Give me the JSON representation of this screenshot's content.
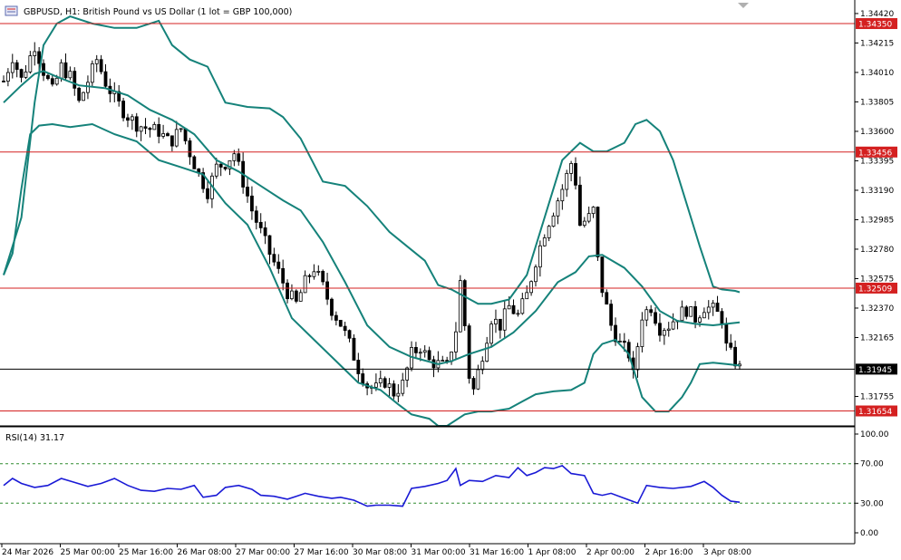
{
  "colors": {
    "background": "#ffffff",
    "candle": "#000000",
    "bollinger": "#15827a",
    "level_line": "#d42020",
    "level_tag": "#d42020",
    "current_tag": "#000000",
    "rsi_line": "#1a1ad6",
    "rsi_level": "#2e8b2e"
  },
  "icons": {
    "symbol": "chart-window-icon",
    "scroll": "scroll-marker-icon"
  },
  "chart_data": [
    {
      "type": "candlestick",
      "title": "GBPUSD, H1:  British Pound vs US Dollar (1 lot = GBP 100,000)",
      "ylim": [
        1.3155,
        1.3447
      ],
      "y_ticks": [
        "1.34420",
        "1.34215",
        "1.34010",
        "1.33805",
        "1.33600",
        "1.33395",
        "1.33190",
        "1.32985",
        "1.32780",
        "1.32575",
        "1.32370",
        "1.32165",
        "1.31755"
      ],
      "x_ticks": [
        "24 Mar 2026",
        "25 Mar 00:00",
        "25 Mar 16:00",
        "26 Mar 08:00",
        "27 Mar 00:00",
        "27 Mar 16:00",
        "30 Mar 08:00",
        "31 Mar 00:00",
        "31 Mar 16:00",
        "1 Apr 08:00",
        "2 Apr 00:00",
        "2 Apr 16:00",
        "3 Apr 08:00"
      ],
      "price_path": [
        [
          0,
          1.3395
        ],
        [
          4,
          1.3412
        ],
        [
          8,
          1.3396
        ],
        [
          14,
          1.342
        ],
        [
          18,
          1.3402
        ],
        [
          22,
          1.3388
        ],
        [
          26,
          1.3405
        ],
        [
          30,
          1.3398
        ],
        [
          34,
          1.338
        ],
        [
          38,
          1.3395
        ],
        [
          42,
          1.341
        ],
        [
          46,
          1.3394
        ],
        [
          50,
          1.3383
        ],
        [
          55,
          1.3372
        ],
        [
          60,
          1.3365
        ],
        [
          65,
          1.3362
        ],
        [
          70,
          1.336
        ],
        [
          75,
          1.3352
        ],
        [
          80,
          1.3362
        ],
        [
          84,
          1.3345
        ],
        [
          88,
          1.333
        ],
        [
          92,
          1.3318
        ],
        [
          96,
          1.3335
        ],
        [
          100,
          1.3338
        ],
        [
          104,
          1.3345
        ],
        [
          108,
          1.3325
        ],
        [
          112,
          1.3305
        ],
        [
          116,
          1.329
        ],
        [
          120,
          1.3275
        ],
        [
          124,
          1.3262
        ],
        [
          128,
          1.3248
        ],
        [
          132,
          1.324
        ],
        [
          136,
          1.3255
        ],
        [
          140,
          1.3265
        ],
        [
          144,
          1.3252
        ],
        [
          148,
          1.3236
        ],
        [
          152,
          1.3226
        ],
        [
          156,
          1.3212
        ],
        [
          160,
          1.3195
        ],
        [
          164,
          1.3183
        ],
        [
          168,
          1.3181
        ],
        [
          172,
          1.3186
        ],
        [
          176,
          1.3178
        ],
        [
          180,
          1.3184
        ],
        [
          184,
          1.3205
        ],
        [
          188,
          1.321
        ],
        [
          192,
          1.32
        ],
        [
          196,
          1.3198
        ],
        [
          200,
          1.3196
        ],
        [
          204,
          1.3222
        ],
        [
          206,
          1.3255
        ],
        [
          208,
          1.3225
        ],
        [
          210,
          1.319
        ],
        [
          212,
          1.318
        ],
        [
          216,
          1.3205
        ],
        [
          220,
          1.323
        ],
        [
          224,
          1.3225
        ],
        [
          228,
          1.3238
        ],
        [
          232,
          1.3232
        ],
        [
          236,
          1.3246
        ],
        [
          240,
          1.327
        ],
        [
          244,
          1.329
        ],
        [
          248,
          1.3305
        ],
        [
          252,
          1.332
        ],
        [
          256,
          1.3338
        ],
        [
          258,
          1.3325
        ],
        [
          260,
          1.3295
        ],
        [
          264,
          1.33
        ],
        [
          266,
          1.3305
        ],
        [
          268,
          1.327
        ],
        [
          270,
          1.325
        ],
        [
          274,
          1.3225
        ],
        [
          278,
          1.3212
        ],
        [
          282,
          1.3205
        ],
        [
          284,
          1.319
        ],
        [
          288,
          1.3232
        ],
        [
          292,
          1.3238
        ],
        [
          296,
          1.3223
        ],
        [
          300,
          1.3225
        ],
        [
          304,
          1.3232
        ],
        [
          308,
          1.3236
        ],
        [
          312,
          1.323
        ],
        [
          316,
          1.3238
        ],
        [
          320,
          1.3236
        ],
        [
          324,
          1.323
        ],
        [
          326,
          1.321
        ],
        [
          330,
          1.32
        ],
        [
          332,
          1.3195
        ]
      ],
      "bollinger": {
        "upper": [
          [
            0,
            1.326
          ],
          [
            8,
            1.33
          ],
          [
            14,
            1.338
          ],
          [
            18,
            1.342
          ],
          [
            24,
            1.3435
          ],
          [
            30,
            1.344
          ],
          [
            40,
            1.3435
          ],
          [
            50,
            1.3432
          ],
          [
            60,
            1.3432
          ],
          [
            70,
            1.3437
          ],
          [
            76,
            1.342
          ],
          [
            84,
            1.341
          ],
          [
            92,
            1.3405
          ],
          [
            100,
            1.338
          ],
          [
            110,
            1.3377
          ],
          [
            120,
            1.3376
          ],
          [
            126,
            1.337
          ],
          [
            134,
            1.3355
          ],
          [
            144,
            1.3325
          ],
          [
            154,
            1.3322
          ],
          [
            164,
            1.3308
          ],
          [
            174,
            1.329
          ],
          [
            182,
            1.328
          ],
          [
            190,
            1.327
          ],
          [
            196,
            1.3253
          ],
          [
            202,
            1.325
          ],
          [
            208,
            1.3245
          ],
          [
            214,
            1.324
          ],
          [
            220,
            1.324
          ],
          [
            228,
            1.3243
          ],
          [
            236,
            1.326
          ],
          [
            244,
            1.33
          ],
          [
            252,
            1.334
          ],
          [
            260,
            1.3352
          ],
          [
            266,
            1.3346
          ],
          [
            272,
            1.3346
          ],
          [
            280,
            1.3352
          ],
          [
            285,
            1.3365
          ],
          [
            290,
            1.3368
          ],
          [
            296,
            1.336
          ],
          [
            302,
            1.334
          ],
          [
            308,
            1.331
          ],
          [
            314,
            1.328
          ],
          [
            320,
            1.3252
          ],
          [
            324,
            1.325
          ],
          [
            330,
            1.3249
          ],
          [
            332,
            1.3248
          ]
        ],
        "middle": [
          [
            0,
            1.338
          ],
          [
            8,
            1.3392
          ],
          [
            14,
            1.34
          ],
          [
            18,
            1.3402
          ],
          [
            24,
            1.3398
          ],
          [
            34,
            1.3392
          ],
          [
            46,
            1.339
          ],
          [
            56,
            1.3385
          ],
          [
            66,
            1.3375
          ],
          [
            76,
            1.3368
          ],
          [
            86,
            1.3358
          ],
          [
            96,
            1.334
          ],
          [
            106,
            1.3332
          ],
          [
            116,
            1.3322
          ],
          [
            126,
            1.3312
          ],
          [
            134,
            1.3305
          ],
          [
            144,
            1.3283
          ],
          [
            154,
            1.3255
          ],
          [
            164,
            1.3225
          ],
          [
            174,
            1.321
          ],
          [
            184,
            1.3203
          ],
          [
            196,
            1.3198
          ],
          [
            202,
            1.32
          ],
          [
            210,
            1.3205
          ],
          [
            220,
            1.321
          ],
          [
            230,
            1.322
          ],
          [
            240,
            1.3235
          ],
          [
            250,
            1.3255
          ],
          [
            258,
            1.3262
          ],
          [
            264,
            1.3273
          ],
          [
            270,
            1.3274
          ],
          [
            280,
            1.3265
          ],
          [
            288,
            1.3252
          ],
          [
            296,
            1.3235
          ],
          [
            304,
            1.3228
          ],
          [
            312,
            1.3226
          ],
          [
            320,
            1.3225
          ],
          [
            326,
            1.3226
          ],
          [
            332,
            1.3227
          ]
        ],
        "lower": [
          [
            0,
            1.326
          ],
          [
            4,
            1.3275
          ],
          [
            8,
            1.332
          ],
          [
            12,
            1.3358
          ],
          [
            16,
            1.3364
          ],
          [
            22,
            1.3365
          ],
          [
            30,
            1.3363
          ],
          [
            40,
            1.3365
          ],
          [
            50,
            1.3358
          ],
          [
            60,
            1.3353
          ],
          [
            70,
            1.334
          ],
          [
            80,
            1.3335
          ],
          [
            90,
            1.333
          ],
          [
            100,
            1.331
          ],
          [
            110,
            1.3295
          ],
          [
            120,
            1.3265
          ],
          [
            130,
            1.323
          ],
          [
            140,
            1.3215
          ],
          [
            150,
            1.32
          ],
          [
            160,
            1.3185
          ],
          [
            170,
            1.318
          ],
          [
            178,
            1.317
          ],
          [
            184,
            1.3163
          ],
          [
            192,
            1.316
          ],
          [
            196,
            1.3155
          ],
          [
            200,
            1.3155
          ],
          [
            208,
            1.3163
          ],
          [
            214,
            1.3165
          ],
          [
            220,
            1.3165
          ],
          [
            228,
            1.3167
          ],
          [
            234,
            1.3172
          ],
          [
            240,
            1.3177
          ],
          [
            248,
            1.3179
          ],
          [
            256,
            1.318
          ],
          [
            262,
            1.3185
          ],
          [
            266,
            1.3205
          ],
          [
            270,
            1.3212
          ],
          [
            276,
            1.3215
          ],
          [
            282,
            1.3205
          ],
          [
            288,
            1.3175
          ],
          [
            294,
            1.3165
          ],
          [
            300,
            1.3165
          ],
          [
            306,
            1.3175
          ],
          [
            310,
            1.3185
          ],
          [
            314,
            1.3198
          ],
          [
            320,
            1.3199
          ],
          [
            326,
            1.3198
          ],
          [
            332,
            1.3197
          ]
        ]
      },
      "levels": [
        {
          "price": 1.3435,
          "label": "1.34350"
        },
        {
          "price": 1.33456,
          "label": "1.33456"
        },
        {
          "price": 1.32509,
          "label": "1.32509"
        },
        {
          "price": 1.31654,
          "label": "1.31654"
        }
      ],
      "current_price": {
        "price": 1.31945,
        "label": "1.31945"
      }
    },
    {
      "type": "line",
      "title": "RSI(14) 31.17",
      "ylim": [
        0,
        100
      ],
      "y_ticks": [
        "100.00",
        "70.00",
        "30.00",
        "0.00"
      ],
      "levels": [
        70,
        30
      ],
      "values": [
        [
          0,
          48
        ],
        [
          4,
          55
        ],
        [
          8,
          50
        ],
        [
          14,
          46
        ],
        [
          20,
          48
        ],
        [
          26,
          55
        ],
        [
          32,
          51
        ],
        [
          38,
          47
        ],
        [
          44,
          50
        ],
        [
          50,
          55
        ],
        [
          56,
          48
        ],
        [
          62,
          43
        ],
        [
          68,
          42
        ],
        [
          74,
          45
        ],
        [
          80,
          44
        ],
        [
          86,
          48
        ],
        [
          90,
          36
        ],
        [
          96,
          38
        ],
        [
          100,
          46
        ],
        [
          106,
          48
        ],
        [
          112,
          44
        ],
        [
          116,
          38
        ],
        [
          122,
          37
        ],
        [
          128,
          34
        ],
        [
          132,
          37
        ],
        [
          136,
          40
        ],
        [
          142,
          37
        ],
        [
          148,
          35
        ],
        [
          152,
          36
        ],
        [
          158,
          33
        ],
        [
          164,
          27
        ],
        [
          168,
          28
        ],
        [
          174,
          28
        ],
        [
          180,
          27
        ],
        [
          184,
          45
        ],
        [
          190,
          47
        ],
        [
          196,
          50
        ],
        [
          200,
          53
        ],
        [
          204,
          65
        ],
        [
          206,
          48
        ],
        [
          210,
          53
        ],
        [
          216,
          52
        ],
        [
          222,
          58
        ],
        [
          228,
          56
        ],
        [
          232,
          66
        ],
        [
          236,
          58
        ],
        [
          240,
          61
        ],
        [
          244,
          66
        ],
        [
          248,
          65
        ],
        [
          252,
          68
        ],
        [
          256,
          60
        ],
        [
          262,
          58
        ],
        [
          266,
          40
        ],
        [
          270,
          38
        ],
        [
          274,
          40
        ],
        [
          280,
          35
        ],
        [
          286,
          30
        ],
        [
          290,
          48
        ],
        [
          296,
          46
        ],
        [
          302,
          45
        ],
        [
          310,
          47
        ],
        [
          316,
          52
        ],
        [
          320,
          46
        ],
        [
          324,
          38
        ],
        [
          328,
          32
        ],
        [
          332,
          31
        ]
      ]
    }
  ]
}
